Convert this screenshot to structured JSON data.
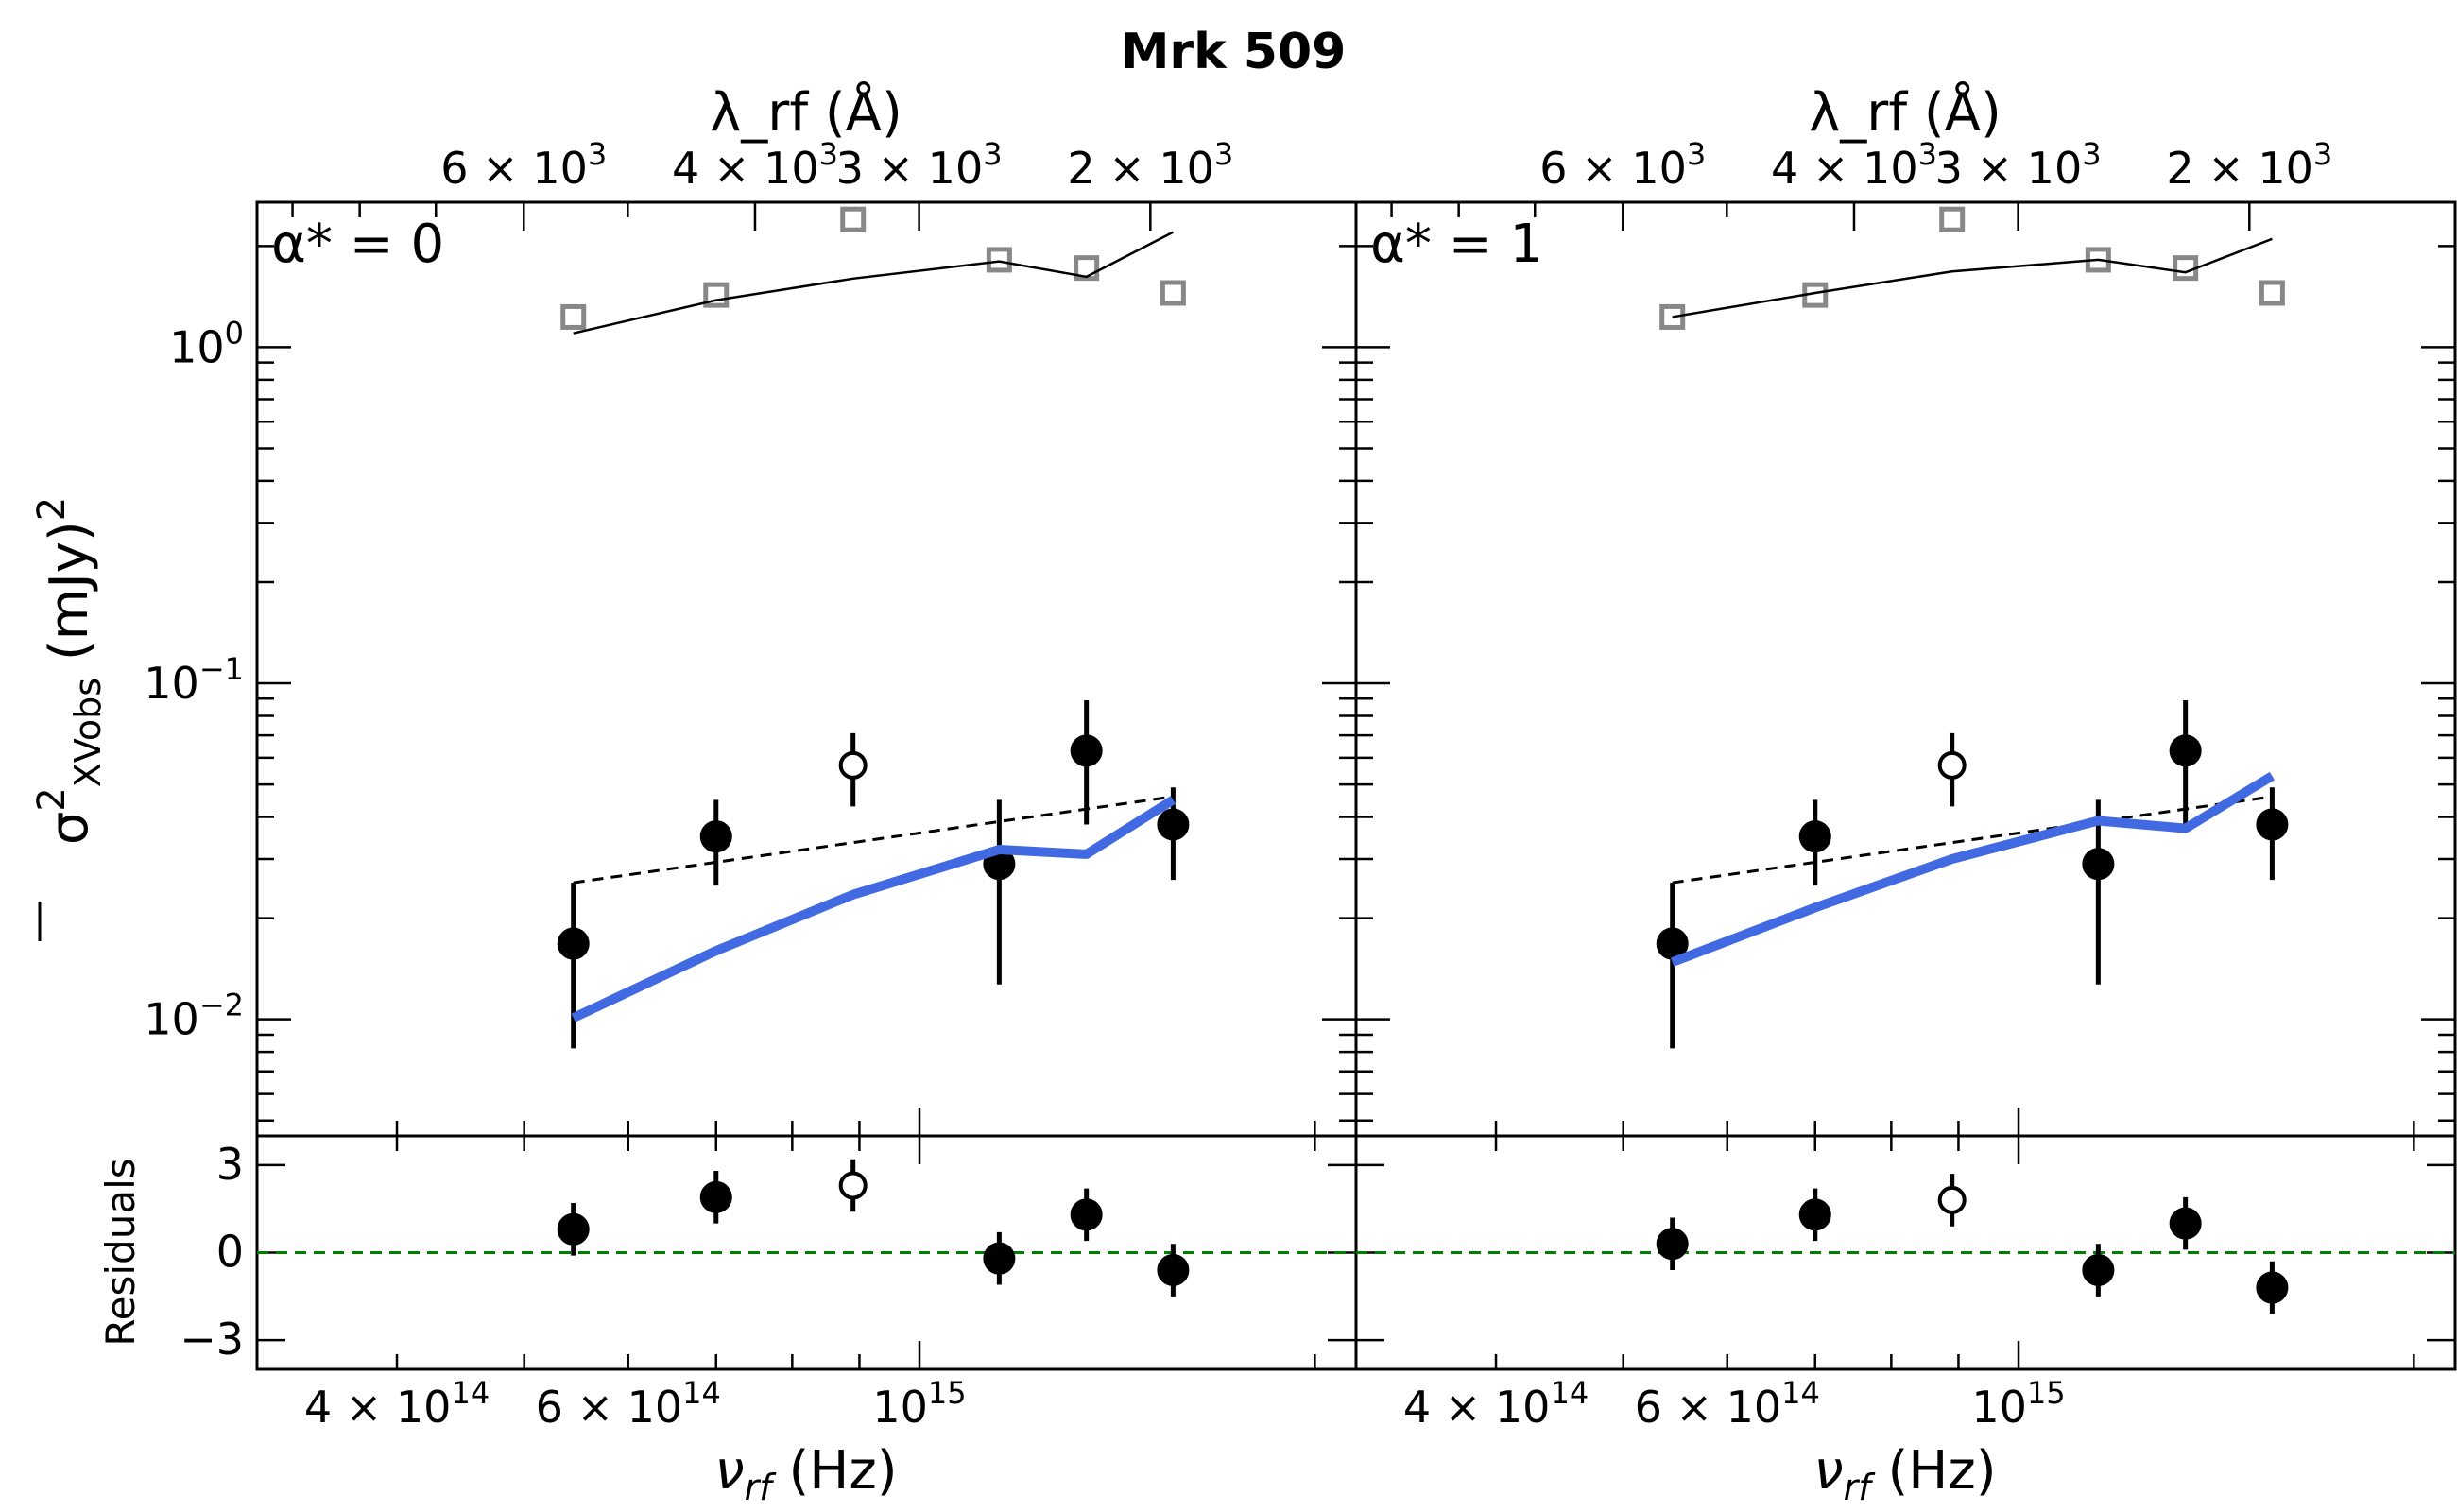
{
  "figure": {
    "title": "Mrk 509"
  },
  "chart_data": [
    {
      "type": "scatter",
      "panel_label": "α* = 0",
      "x_scale": "log",
      "y_scale": "log",
      "xlim": [
        313000000000000,
        2150000000000000
      ],
      "ylim": [
        0.0045,
        2.7
      ],
      "xlabel": "ν_rf (Hz)",
      "ylabel": "σ²_XVobs (mJy)²",
      "top_xlabel": "λ_rf (Å)",
      "x_tick_labels": [
        {
          "value": 400000000000000,
          "label": "4 × 10^14"
        },
        {
          "value": 600000000000000,
          "label": "6 × 10^14"
        },
        {
          "value": 1000000000000000,
          "label": "10^15"
        }
      ],
      "top_tick_labels": [
        {
          "value_angstrom": 6000,
          "label": "6 × 10^3"
        },
        {
          "value_angstrom": 4000,
          "label": "4 × 10^3"
        },
        {
          "value_angstrom": 3000,
          "label": "3 × 10^3"
        },
        {
          "value_angstrom": 2000,
          "label": "2 × 10^3"
        }
      ],
      "y_tick_labels": [
        {
          "value": 1,
          "label": "10^0"
        },
        {
          "value": 0.1,
          "label": "10^-1"
        },
        {
          "value": 0.01,
          "label": "10^-2"
        }
      ],
      "series": [
        {
          "marker": "filled-circle-errorbar",
          "x": [
            545000000000000,
            700000000000000,
            1150000000000000,
            1340000000000000,
            1560000000000000
          ],
          "y": [
            0.0168,
            0.035,
            0.029,
            0.063,
            0.038
          ],
          "y_low": [
            0.0082,
            0.025,
            0.0127,
            0.038,
            0.026
          ],
          "y_high": [
            0.0255,
            0.045,
            0.045,
            0.089,
            0.049
          ]
        },
        {
          "marker": "open-circle-errorbar",
          "x": [
            890000000000000
          ],
          "y": [
            0.057
          ],
          "y_low": [
            0.043
          ],
          "y_high": [
            0.071
          ]
        },
        {
          "marker": "open-square-gray",
          "x": [
            545000000000000,
            700000000000000,
            890000000000000,
            1150000000000000,
            1340000000000000,
            1560000000000000
          ],
          "y": [
            1.23,
            1.43,
            2.4,
            1.82,
            1.72,
            1.45
          ]
        },
        {
          "line": "thin-black-solid",
          "x": [
            545000000000000,
            700000000000000,
            890000000000000,
            1150000000000000,
            1340000000000000,
            1560000000000000
          ],
          "y": [
            1.1,
            1.38,
            1.6,
            1.8,
            1.62,
            2.2
          ]
        },
        {
          "line": "black-dashed",
          "x": [
            545000000000000,
            1560000000000000
          ],
          "y": [
            0.0255,
            0.046
          ]
        },
        {
          "line": "blue-thick",
          "color": "#4169e1",
          "x": [
            545000000000000,
            700000000000000,
            890000000000000,
            1150000000000000,
            1340000000000000,
            1560000000000000
          ],
          "y": [
            0.0101,
            0.016,
            0.0235,
            0.032,
            0.031,
            0.045
          ]
        }
      ]
    },
    {
      "type": "scatter",
      "panel_label": "α* = 1",
      "x_scale": "log",
      "y_scale": "log",
      "xlim": [
        313000000000000,
        2150000000000000
      ],
      "ylim": [
        0.0045,
        2.7
      ],
      "xlabel": "ν_rf (Hz)",
      "top_xlabel": "λ_rf (Å)",
      "x_tick_labels": [
        {
          "value": 400000000000000,
          "label": "4 × 10^14"
        },
        {
          "value": 600000000000000,
          "label": "6 × 10^14"
        },
        {
          "value": 1000000000000000,
          "label": "10^15"
        }
      ],
      "top_tick_labels": [
        {
          "value_angstrom": 6000,
          "label": "6 × 10^3"
        },
        {
          "value_angstrom": 4000,
          "label": "4 × 10^3"
        },
        {
          "value_angstrom": 3000,
          "label": "3 × 10^3"
        },
        {
          "value_angstrom": 2000,
          "label": "2 × 10^3"
        }
      ],
      "series": [
        {
          "marker": "filled-circle-errorbar",
          "x": [
            545000000000000,
            700000000000000,
            1150000000000000,
            1340000000000000,
            1560000000000000
          ],
          "y": [
            0.0168,
            0.035,
            0.029,
            0.063,
            0.038
          ],
          "y_low": [
            0.0082,
            0.025,
            0.0127,
            0.038,
            0.026
          ],
          "y_high": [
            0.0255,
            0.045,
            0.045,
            0.089,
            0.049
          ]
        },
        {
          "marker": "open-circle-errorbar",
          "x": [
            890000000000000
          ],
          "y": [
            0.057
          ],
          "y_low": [
            0.043
          ],
          "y_high": [
            0.071
          ]
        },
        {
          "marker": "open-square-gray",
          "x": [
            545000000000000,
            700000000000000,
            890000000000000,
            1150000000000000,
            1340000000000000,
            1560000000000000
          ],
          "y": [
            1.23,
            1.43,
            2.4,
            1.82,
            1.72,
            1.45
          ]
        },
        {
          "line": "thin-black-solid",
          "x": [
            545000000000000,
            700000000000000,
            890000000000000,
            1150000000000000,
            1340000000000000,
            1560000000000000
          ],
          "y": [
            1.23,
            1.45,
            1.68,
            1.82,
            1.67,
            2.1
          ]
        },
        {
          "line": "black-dashed",
          "x": [
            545000000000000,
            1560000000000000
          ],
          "y": [
            0.0255,
            0.046
          ]
        },
        {
          "line": "blue-thick",
          "color": "#4169e1",
          "x": [
            545000000000000,
            700000000000000,
            890000000000000,
            1150000000000000,
            1340000000000000,
            1560000000000000
          ],
          "y": [
            0.0148,
            0.0215,
            0.03,
            0.039,
            0.037,
            0.053
          ]
        }
      ]
    },
    {
      "type": "scatter",
      "role": "residuals",
      "parent_panel": "α* = 0",
      "ylabel": "Residuals",
      "ylim": [
        -4,
        4
      ],
      "y_tick_labels": [
        {
          "value": 3,
          "label": "3"
        },
        {
          "value": 0,
          "label": "0"
        },
        {
          "value": -3,
          "label": "−3"
        }
      ],
      "zero_line_color": "#008000",
      "series": [
        {
          "marker": "filled-circle-errorbar",
          "x": [
            545000000000000,
            700000000000000,
            1150000000000000,
            1340000000000000,
            1560000000000000
          ],
          "y": [
            0.8,
            1.9,
            -0.2,
            1.3,
            -0.6
          ],
          "err": [
            0.9,
            0.9,
            0.9,
            0.9,
            0.9
          ]
        },
        {
          "marker": "open-circle-errorbar",
          "x": [
            890000000000000
          ],
          "y": [
            2.3
          ],
          "err": [
            0.9
          ]
        }
      ]
    },
    {
      "type": "scatter",
      "role": "residuals",
      "parent_panel": "α* = 1",
      "ylim": [
        -4,
        4
      ],
      "zero_line_color": "#008000",
      "series": [
        {
          "marker": "filled-circle-errorbar",
          "x": [
            545000000000000,
            700000000000000,
            1150000000000000,
            1340000000000000,
            1560000000000000
          ],
          "y": [
            0.3,
            1.3,
            -0.6,
            1.0,
            -1.2
          ],
          "err": [
            0.9,
            0.9,
            0.9,
            0.9,
            0.9
          ]
        },
        {
          "marker": "open-circle-errorbar",
          "x": [
            890000000000000
          ],
          "y": [
            1.8
          ],
          "err": [
            0.9
          ]
        }
      ]
    }
  ]
}
